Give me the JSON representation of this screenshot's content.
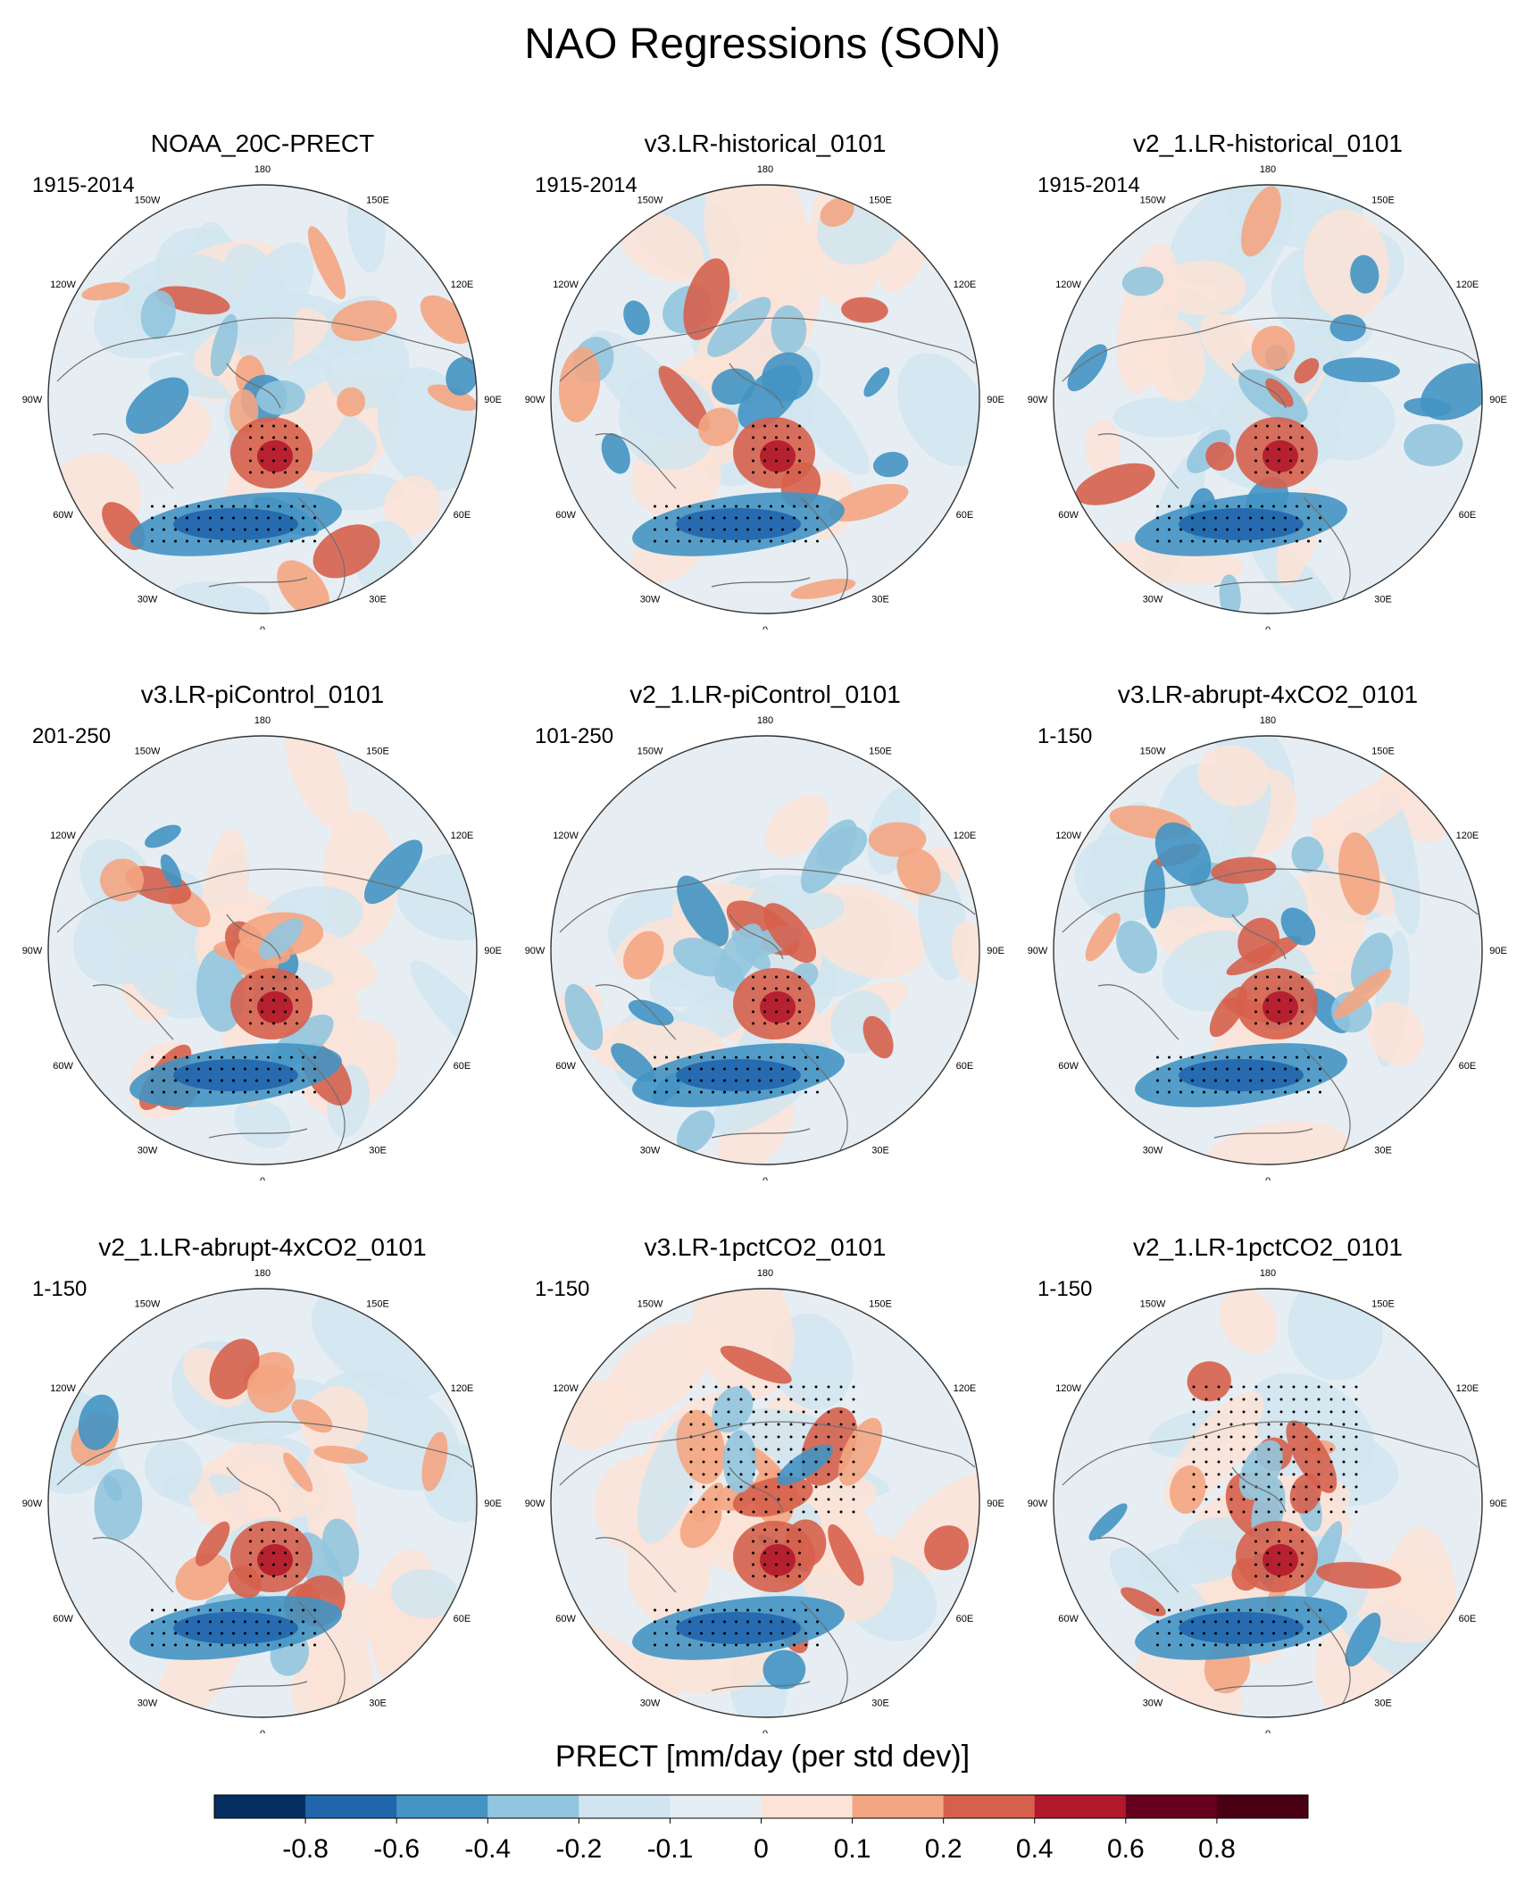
{
  "figure": {
    "title": "NAO Regressions (SON)"
  },
  "chart_data": {
    "type": "polar-stereographic-map-grid",
    "variable": "PRECT",
    "units": "mm/day (per std dev)",
    "hatching": "stippled = statistically significant",
    "longitude_labels": [
      "180",
      "150E",
      "120E",
      "90E",
      "60E",
      "30E",
      "0",
      "30W",
      "60W",
      "90W",
      "120W",
      "150W"
    ],
    "panels": [
      {
        "title": "NOAA_20C-PRECT",
        "period": "1915-2014"
      },
      {
        "title": "v3.LR-historical_0101",
        "period": "1915-2014"
      },
      {
        "title": "v2_1.LR-historical_0101",
        "period": "1915-2014"
      },
      {
        "title": "v3.LR-piControl_0101",
        "period": "201-250"
      },
      {
        "title": "v2_1.LR-piControl_0101",
        "period": "101-250"
      },
      {
        "title": "v3.LR-abrupt-4xCO2_0101",
        "period": "1-150"
      },
      {
        "title": "v2_1.LR-abrupt-4xCO2_0101",
        "period": "1-150"
      },
      {
        "title": "v3.LR-1pctCO2_0101",
        "period": "1-150"
      },
      {
        "title": "v2_1.LR-1pctCO2_0101",
        "period": "1-150"
      }
    ],
    "colorbar": {
      "title": "PRECT [mm/day (per std dev)]",
      "tick_labels": [
        "-0.8",
        "-0.6",
        "-0.4",
        "-0.2",
        "-0.1",
        "0",
        "0.1",
        "0.2",
        "0.4",
        "0.6",
        "0.8"
      ],
      "colors": [
        "#053061",
        "#2166ac",
        "#4393c3",
        "#92c5de",
        "#d1e5f0",
        "#e6eef4",
        "#fbe3d7",
        "#f4a582",
        "#d6604d",
        "#b2182b",
        "#67001f",
        "#4a0013"
      ]
    }
  }
}
